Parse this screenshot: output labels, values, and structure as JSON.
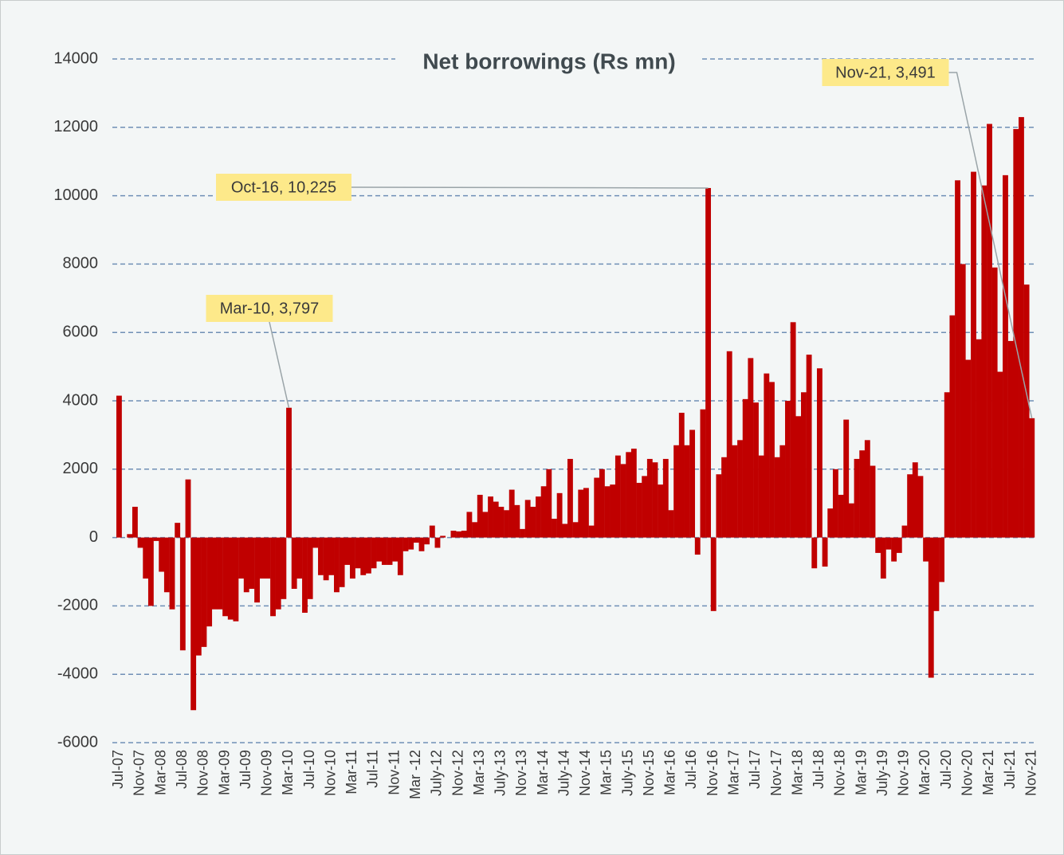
{
  "chart_data": {
    "type": "bar",
    "title": "Net borrowings (Rs mn)",
    "categories": [
      "Jul-07",
      null,
      null,
      null,
      "Nov-07",
      null,
      null,
      null,
      "Mar-08",
      null,
      null,
      null,
      "Jul-08",
      null,
      null,
      null,
      "Nov-08",
      null,
      null,
      null,
      "Mar-09",
      null,
      null,
      null,
      "Jul-09",
      null,
      null,
      null,
      "Nov-09",
      null,
      null,
      null,
      "Mar-10",
      null,
      null,
      null,
      "Jul-10",
      null,
      null,
      null,
      "Nov-10",
      null,
      null,
      null,
      "Mar-11",
      null,
      null,
      null,
      "Jul-11",
      null,
      null,
      null,
      "Nov-11",
      null,
      null,
      null,
      "Mar -12",
      null,
      null,
      null,
      "July-12",
      null,
      null,
      null,
      "Nov-12",
      null,
      null,
      null,
      "Mar-13",
      null,
      null,
      null,
      "July-13",
      null,
      null,
      null,
      "Nov-13",
      null,
      null,
      null,
      "Mar-14",
      null,
      null,
      null,
      "July-14",
      null,
      null,
      null,
      "Nov-14",
      null,
      null,
      null,
      "Mar-15",
      null,
      null,
      null,
      "July-15",
      null,
      null,
      null,
      "Nov-15",
      null,
      null,
      null,
      "Mar-16",
      null,
      null,
      null,
      "Jul-16",
      null,
      null,
      null,
      "Nov-16",
      null,
      null,
      null,
      "Mar-17",
      null,
      null,
      null,
      "Jul-17",
      null,
      null,
      null,
      "Nov-17",
      null,
      null,
      null,
      "Mar-18",
      null,
      null,
      null,
      "Jul-18",
      null,
      null,
      null,
      "Nov-18",
      null,
      null,
      null,
      "Mar-19",
      null,
      null,
      null,
      "July-19",
      null,
      null,
      null,
      "Nov-19",
      null,
      null,
      null,
      "Mar-20",
      null,
      null,
      null,
      "Jul-20",
      null,
      null,
      null,
      "Nov-20",
      null,
      null,
      null,
      "Mar-21",
      null,
      null,
      null,
      "Jul-21",
      null,
      null,
      null,
      "Nov-21"
    ],
    "values": [
      4150,
      0,
      100,
      900,
      -300,
      -1200,
      -2000,
      -100,
      -1000,
      -1600,
      -2100,
      430,
      -3300,
      1700,
      -5050,
      -3450,
      -3200,
      -2600,
      -2100,
      -2100,
      -2300,
      -2400,
      -2450,
      -1200,
      -1600,
      -1500,
      -1900,
      -1200,
      -1200,
      -2300,
      -2100,
      -1800,
      3797,
      -1500,
      -1200,
      -2200,
      -1800,
      -300,
      -1100,
      -1250,
      -1100,
      -1600,
      -1450,
      -800,
      -1200,
      -900,
      -1100,
      -1050,
      -900,
      -700,
      -800,
      -800,
      -700,
      -1100,
      -400,
      -350,
      -150,
      -400,
      -200,
      350,
      -300,
      50,
      0,
      200,
      180,
      200,
      750,
      450,
      1250,
      750,
      1200,
      1050,
      900,
      800,
      1400,
      950,
      250,
      1100,
      900,
      1200,
      1500,
      2000,
      550,
      1300,
      400,
      2300,
      450,
      1400,
      1450,
      350,
      1750,
      2000,
      1500,
      1550,
      2400,
      2150,
      2500,
      2600,
      1600,
      1800,
      2300,
      2200,
      1550,
      2300,
      800,
      2700,
      3650,
      2700,
      3150,
      -500,
      3750,
      10225,
      -2150,
      1850,
      2350,
      5450,
      2700,
      2850,
      4050,
      5250,
      3950,
      2400,
      4800,
      4550,
      2350,
      2700,
      4000,
      6300,
      3550,
      4250,
      5350,
      -900,
      4950,
      -850,
      850,
      2000,
      1250,
      3450,
      1000,
      2300,
      2550,
      2850,
      2100,
      -450,
      -1200,
      -350,
      -700,
      -450,
      350,
      1850,
      2200,
      1800,
      -700,
      -4100,
      -2150,
      -1300,
      4250,
      6500,
      10450,
      8000,
      5200,
      10700,
      5800,
      10300,
      12100,
      7900,
      4850,
      10600,
      5750,
      11950,
      12300,
      7400,
      3491
    ],
    "color": "#c00000",
    "ylim": [
      -6000,
      14000
    ],
    "yticks": [
      -6000,
      -4000,
      -2000,
      0,
      2000,
      4000,
      6000,
      8000,
      10000,
      12000,
      14000
    ],
    "grid": true,
    "annotations": [
      "Oct-16, 10,225",
      "Mar-10, 3,797",
      "Nov-21, 3,491"
    ]
  }
}
